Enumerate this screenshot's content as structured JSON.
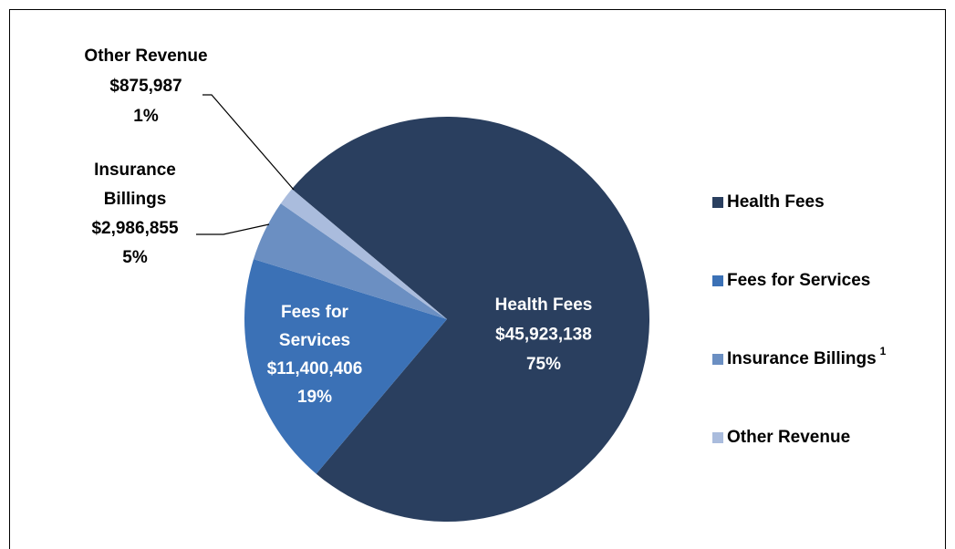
{
  "chart_data": {
    "type": "pie",
    "categories": [
      "Health Fees",
      "Fees for Services",
      "Insurance Billings",
      "Other Revenue"
    ],
    "slice_labels": [
      [
        "Health Fees"
      ],
      [
        "Fees for",
        "Services"
      ],
      [
        "Insurance",
        "Billings"
      ],
      [
        "Other Revenue"
      ]
    ],
    "values": [
      45923138,
      11400406,
      2986855,
      875987
    ],
    "value_labels": [
      "$45,923,138",
      "$11,400,406",
      "$2,986,855",
      "$875,987"
    ],
    "percentages": [
      75,
      19,
      5,
      1
    ],
    "percentage_labels": [
      "75%",
      "19%",
      "5%",
      "1%"
    ],
    "colors": [
      "#2a3f5f",
      "#3b71b6",
      "#6b8fc2",
      "#aabcdd"
    ],
    "legend_superscripts": [
      null,
      null,
      "1",
      null
    ],
    "legend": "right"
  }
}
